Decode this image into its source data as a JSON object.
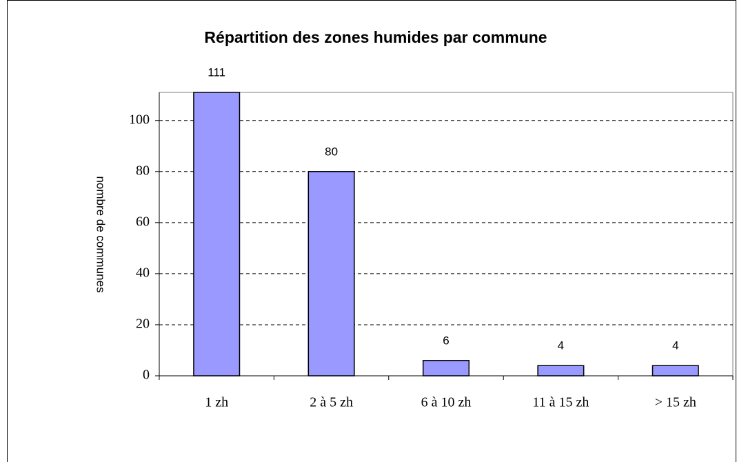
{
  "chart_data": {
    "type": "bar",
    "title": "Répartition des zones humides par commune",
    "y_label": "nombre de communes",
    "categories": [
      "1 zh",
      "2 à 5 zh",
      "6 à 10 zh",
      "11 à 15 zh",
      "> 15 zh"
    ],
    "values": [
      111,
      80,
      6,
      4,
      4
    ],
    "color": "#9999ff",
    "ylim": [
      0,
      111
    ],
    "yticks": [
      0,
      20,
      40,
      60,
      80,
      100
    ],
    "grid": true
  }
}
